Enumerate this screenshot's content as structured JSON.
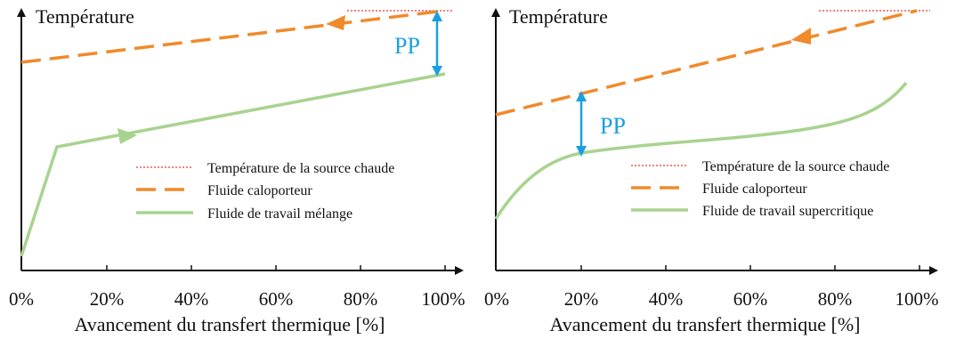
{
  "colors": {
    "axis": "#111111",
    "source": "#e8382e",
    "caloporteur": "#f08a2b",
    "travail": "#a8d38f",
    "pp": "#1aa0e0"
  },
  "icons": {
    "flow_arrow": "filled-triangle-arrow",
    "pp_arrow": "double-headed-arrow"
  },
  "panels": [
    {
      "y_axis_title": "Température",
      "x_axis_title": "Avancement du transfert thermique [%]",
      "x_ticks": [
        "0%",
        "20%",
        "40%",
        "60%",
        "80%",
        "100%"
      ],
      "pp_label": "PP",
      "legend": {
        "source": "Température de la source chaude",
        "caloporteur": "Fluide caloporteur",
        "travail": "Fluide de travail mélange"
      }
    },
    {
      "y_axis_title": "Température",
      "x_axis_title": "Avancement du transfert thermique [%]",
      "x_ticks": [
        "0%",
        "20%",
        "40%",
        "60%",
        "80%",
        "100%"
      ],
      "pp_label": "PP",
      "legend": {
        "source": "Température de la source chaude",
        "caloporteur": "Fluide caloporteur",
        "travail": "Fluide de travail supercritique"
      }
    }
  ]
}
